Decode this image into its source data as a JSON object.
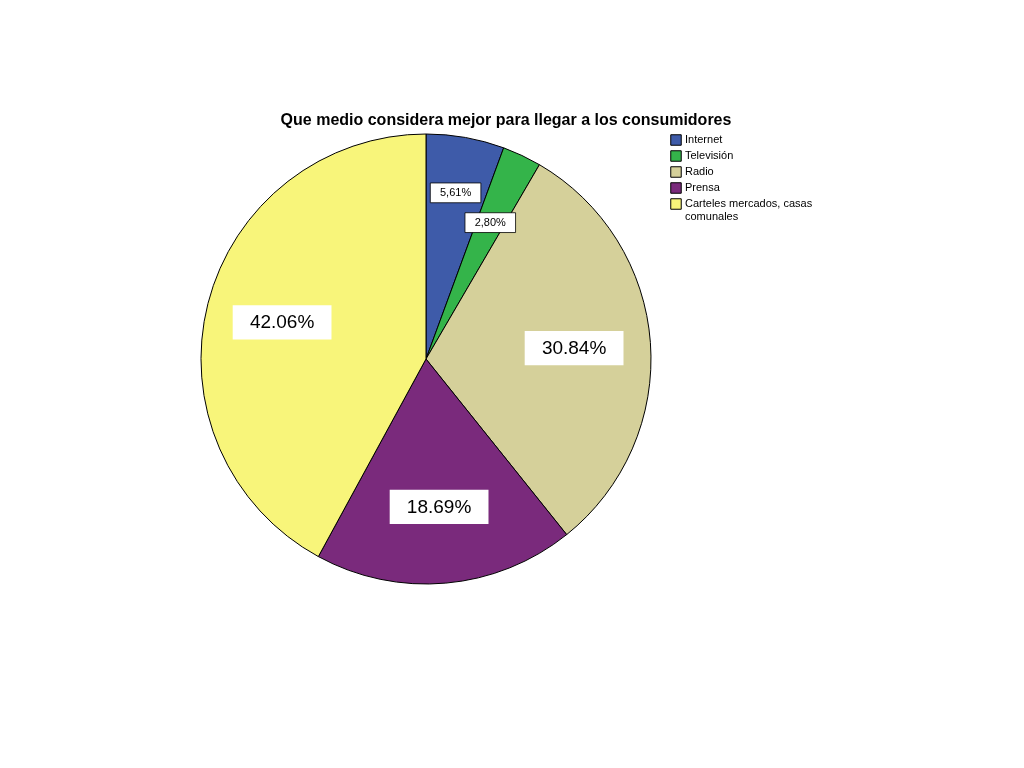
{
  "chart_data": {
    "type": "pie",
    "title": "Que medio considera mejor para llegar a los consumidores",
    "categories": [
      "Internet",
      "Televisión",
      "Radio",
      "Prensa",
      "Carteles mercados, casas comunales"
    ],
    "values": [
      5.61,
      2.8,
      30.84,
      18.69,
      42.06
    ],
    "colors": [
      "#3e5ba9",
      "#34b44a",
      "#d5d09a",
      "#7a2a7c",
      "#f8f57a"
    ],
    "value_labels": [
      "5,61%",
      "2,80%",
      "30.84%",
      "18.69%",
      "42.06%"
    ],
    "legend": "top right"
  }
}
